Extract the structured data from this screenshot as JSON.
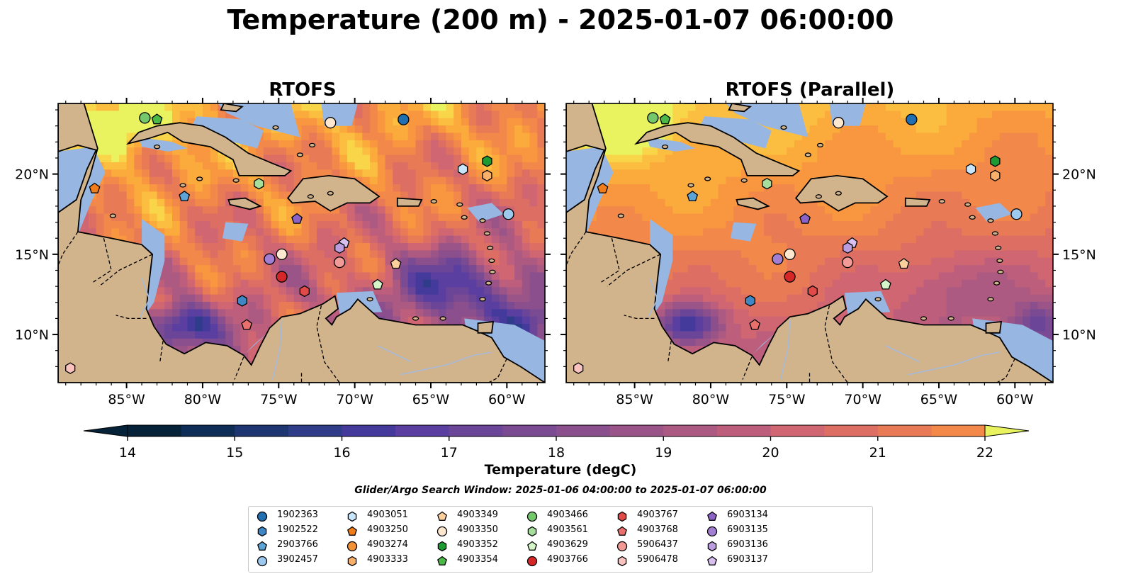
{
  "title": "Temperature (200 m) - 2025-01-07 06:00:00",
  "panels": [
    {
      "id": "rtofs",
      "title": "RTOFS",
      "lat_labels_side": "left"
    },
    {
      "id": "rtofs-parallel",
      "title": "RTOFS (Parallel)",
      "lat_labels_side": "right"
    }
  ],
  "map": {
    "lon_range": [
      -89.5,
      -57.5
    ],
    "lat_range": [
      7.0,
      24.4
    ],
    "lon_ticks": [
      "85°W",
      "80°W",
      "75°W",
      "70°W",
      "65°W",
      "60°W"
    ],
    "lon_tick_values": [
      -85,
      -80,
      -75,
      -70,
      -65,
      -60
    ],
    "lat_ticks": [
      "20°N",
      "15°N",
      "10°N"
    ],
    "lat_tick_values": [
      20,
      15,
      10
    ],
    "land_color": "#d2b48c",
    "shelf_color": "#97b6e1",
    "deep_color": "#06253a"
  },
  "colorbar": {
    "label": "Temperature (degC)",
    "min": 14,
    "max": 22,
    "step": 0.5,
    "tick_labels": [
      "14",
      "15",
      "16",
      "17",
      "18",
      "19",
      "20",
      "21",
      "22"
    ],
    "colors": [
      "#062238",
      "#0d2d57",
      "#1d3570",
      "#2e3c8a",
      "#443a9c",
      "#5a3fa0",
      "#6b4598",
      "#7a4b92",
      "#8a4f8c",
      "#9b5488",
      "#ac5a82",
      "#bd5f7c",
      "#cf6672",
      "#dd6e64",
      "#e97a56",
      "#f2884a",
      "#f8973f",
      "#fbaa3c",
      "#fcbe40",
      "#f9d549",
      "#e8f35f"
    ],
    "extend": "both"
  },
  "search_window": "Glider/Argo Search Window: 2025-01-06 04:00:00 to 2025-01-07 06:00:00",
  "legend": {
    "columns": 7,
    "items": [
      {
        "label": "1902363",
        "marker": "circle",
        "color": "#1f6fb2"
      },
      {
        "label": "1902522",
        "marker": "hexagon",
        "color": "#3f88c5"
      },
      {
        "label": "2903766",
        "marker": "pentagon",
        "color": "#5da3d6"
      },
      {
        "label": "3902457",
        "marker": "circle",
        "color": "#9ec9ee"
      },
      {
        "label": "4903051",
        "marker": "hexagon",
        "color": "#c8e6fb"
      },
      {
        "label": "4903250",
        "marker": "pentagon",
        "color": "#f07d1a"
      },
      {
        "label": "4903274",
        "marker": "circle",
        "color": "#f39135"
      },
      {
        "label": "4903333",
        "marker": "hexagon",
        "color": "#f8b06a"
      },
      {
        "label": "4903349",
        "marker": "pentagon",
        "color": "#fbd09c"
      },
      {
        "label": "4903350",
        "marker": "circle",
        "color": "#fde7cf"
      },
      {
        "label": "4903352",
        "marker": "hexagon",
        "color": "#1e9a32"
      },
      {
        "label": "4903354",
        "marker": "pentagon",
        "color": "#4cb848"
      },
      {
        "label": "4903466",
        "marker": "circle",
        "color": "#74c86b"
      },
      {
        "label": "4903561",
        "marker": "hexagon",
        "color": "#a6df9b"
      },
      {
        "label": "4903629",
        "marker": "pentagon",
        "color": "#d4f5c8"
      },
      {
        "label": "4903766",
        "marker": "circle",
        "color": "#d62728"
      },
      {
        "label": "4903767",
        "marker": "hexagon",
        "color": "#e04a48"
      },
      {
        "label": "4903768",
        "marker": "pentagon",
        "color": "#e9706c"
      },
      {
        "label": "5906437",
        "marker": "circle",
        "color": "#f29a96"
      },
      {
        "label": "5906478",
        "marker": "hexagon",
        "color": "#fbc3c0"
      },
      {
        "label": "6903134",
        "marker": "pentagon",
        "color": "#8b63c6"
      },
      {
        "label": "6903135",
        "marker": "circle",
        "color": "#a37fd3"
      },
      {
        "label": "6903136",
        "marker": "hexagon",
        "color": "#bc9ee0"
      },
      {
        "label": "6903137",
        "marker": "pentagon",
        "color": "#d7c0ef"
      }
    ]
  },
  "floats": [
    {
      "id": "1902363",
      "lon": -66.8,
      "lat": 23.4
    },
    {
      "id": "4903350",
      "lon": -71.6,
      "lat": 23.2
    },
    {
      "id": "4903466",
      "lon": -83.8,
      "lat": 23.5
    },
    {
      "id": "4903354",
      "lon": -83.0,
      "lat": 23.4
    },
    {
      "id": "4903051",
      "lon": -62.9,
      "lat": 20.3
    },
    {
      "id": "4903352",
      "lon": -61.3,
      "lat": 20.8
    },
    {
      "id": "4903333",
      "lon": -61.3,
      "lat": 19.9
    },
    {
      "id": "4903250",
      "lon": -87.1,
      "lat": 19.1
    },
    {
      "id": "2903766",
      "lon": -81.2,
      "lat": 18.6
    },
    {
      "id": "4903561",
      "lon": -76.3,
      "lat": 19.4
    },
    {
      "id": "3902457",
      "lon": -59.9,
      "lat": 17.5
    },
    {
      "id": "6903134",
      "lon": -73.8,
      "lat": 17.2
    },
    {
      "id": "6903137",
      "lon": -70.7,
      "lat": 15.7
    },
    {
      "id": "6903136",
      "lon": -71.0,
      "lat": 15.4
    },
    {
      "id": "4903350",
      "lon": -74.8,
      "lat": 15.0
    },
    {
      "id": "6903135",
      "lon": -75.6,
      "lat": 14.7
    },
    {
      "id": "5906437",
      "lon": -71.0,
      "lat": 14.5
    },
    {
      "id": "4903349",
      "lon": -67.3,
      "lat": 14.4
    },
    {
      "id": "4903766",
      "lon": -74.8,
      "lat": 13.6
    },
    {
      "id": "4903767",
      "lon": -73.3,
      "lat": 12.7
    },
    {
      "id": "4903629",
      "lon": -68.5,
      "lat": 13.1
    },
    {
      "id": "1902522",
      "lon": -77.4,
      "lat": 12.1
    },
    {
      "id": "4903768",
      "lon": -77.1,
      "lat": 10.6
    },
    {
      "id": "5906478",
      "lon": -88.7,
      "lat": 7.9
    }
  ]
}
